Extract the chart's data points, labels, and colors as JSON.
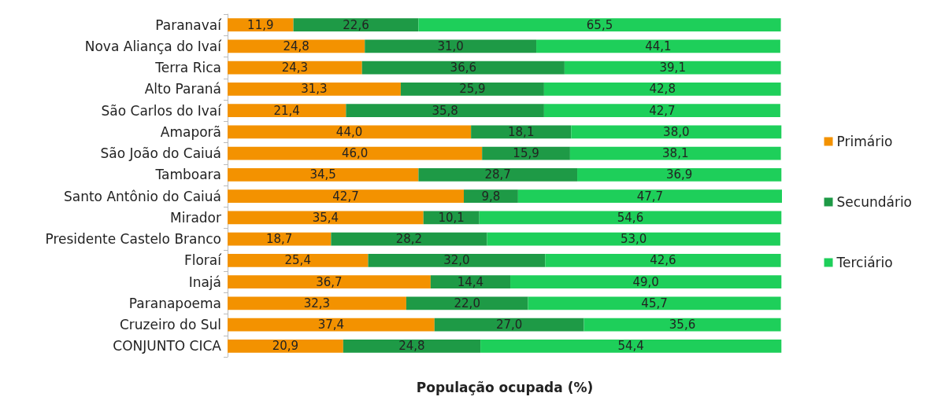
{
  "chart_data": {
    "type": "bar",
    "orientation": "horizontal",
    "stacked": true,
    "xlabel": "População ocupada (%)",
    "categories": [
      "Paranavaí",
      "Nova Aliança do Ivaí",
      "Terra Rica",
      "Alto Paraná",
      "São Carlos do Ivaí",
      "Amaporã",
      "São João do Caiuá",
      "Tamboara",
      "Santo Antônio do Caiuá",
      "Mirador",
      "Presidente Castelo Branco",
      "Floraí",
      "Inajá",
      "Paranapoema",
      "Cruzeiro do Sul",
      "CONJUNTO CICA"
    ],
    "series": [
      {
        "name": "Primário",
        "color": "#f39200",
        "values": [
          11.9,
          24.8,
          24.3,
          31.3,
          21.4,
          44.0,
          46.0,
          34.5,
          42.7,
          35.4,
          18.7,
          25.4,
          36.7,
          32.3,
          37.4,
          20.9
        ],
        "value_labels": [
          "11,9",
          "24,8",
          "24,3",
          "31,3",
          "21,4",
          "44,0",
          "46,0",
          "34,5",
          "42,7",
          "35,4",
          "18,7",
          "25,4",
          "36,7",
          "32,3",
          "37,4",
          "20,9"
        ]
      },
      {
        "name": "Secundário",
        "color": "#1e9a46",
        "values": [
          22.6,
          31.0,
          36.6,
          25.9,
          35.8,
          18.1,
          15.9,
          28.7,
          9.8,
          10.1,
          28.2,
          32.0,
          14.4,
          22.0,
          27.0,
          24.8
        ],
        "value_labels": [
          "22,6",
          "31,0",
          "36,6",
          "25,9",
          "35,8",
          "18,1",
          "15,9",
          "28,7",
          "9,8",
          "10,1",
          "28,2",
          "32,0",
          "14,4",
          "22,0",
          "27,0",
          "24,8"
        ]
      },
      {
        "name": "Terciário",
        "color": "#1ecf5a",
        "values": [
          65.5,
          44.1,
          39.1,
          42.8,
          42.7,
          38.0,
          38.1,
          36.9,
          47.7,
          54.6,
          53.0,
          42.6,
          49.0,
          45.7,
          35.6,
          54.4
        ],
        "value_labels": [
          "65,5",
          "44,1",
          "39,1",
          "42,8",
          "42,7",
          "38,0",
          "38,1",
          "36,9",
          "47,7",
          "54,6",
          "53,0",
          "42,6",
          "49,0",
          "45,7",
          "35,6",
          "54,4"
        ]
      }
    ],
    "legend": "right",
    "tick_labels": "y"
  }
}
